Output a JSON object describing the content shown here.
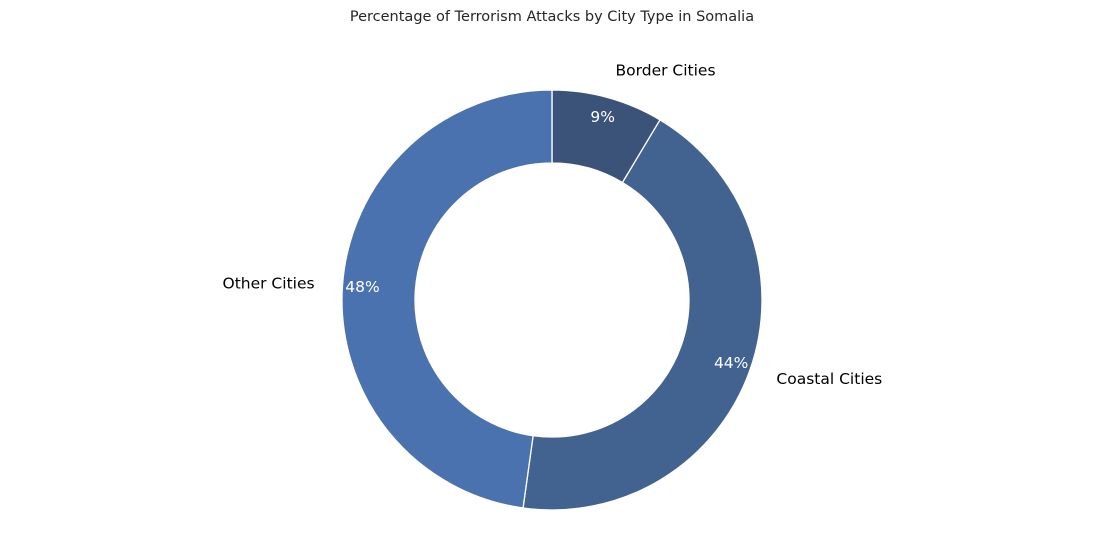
{
  "chart_data": {
    "type": "pie",
    "variant": "donut",
    "title": "Percentage of Terrorism Attacks by City Type in Somalia",
    "slices": [
      {
        "label": "Border Cities",
        "value": 8.6,
        "display": "9%",
        "color": "#3b5279"
      },
      {
        "label": "Coastal Cities",
        "value": 43.6,
        "display": "44%",
        "color": "#42628f"
      },
      {
        "label": "Other Cities",
        "value": 47.8,
        "display": "48%",
        "color": "#4a72ae"
      }
    ],
    "start_angle": "top",
    "direction": "clockwise",
    "legend": "none"
  }
}
